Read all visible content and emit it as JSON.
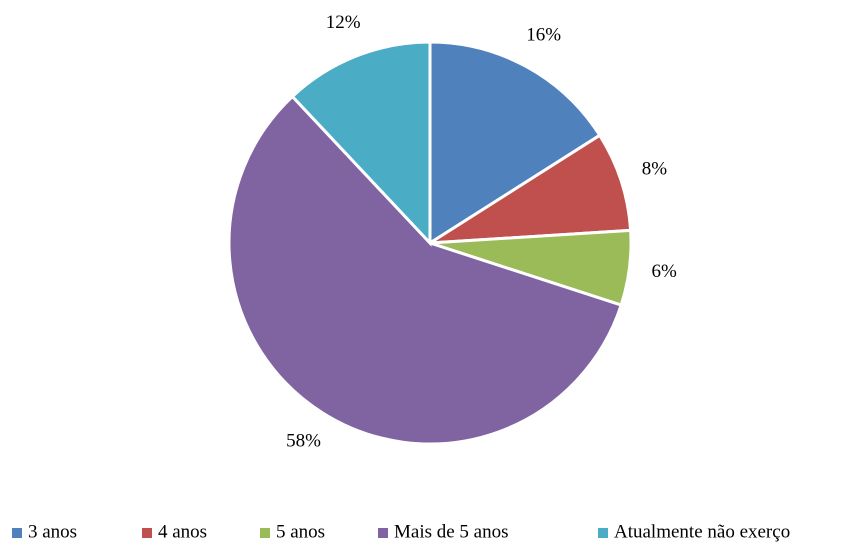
{
  "chart_data": {
    "type": "pie",
    "categories": [
      "3 anos",
      "4 anos",
      "5 anos",
      "Mais de 5 anos",
      "Atualmente não exerço"
    ],
    "values": [
      16,
      8,
      6,
      58,
      12
    ],
    "value_labels": [
      "16%",
      "8%",
      "6%",
      "58%",
      "12%"
    ],
    "colors": [
      "#4f81bd",
      "#c0504d",
      "#9bbb59",
      "#8064a2",
      "#4bacc6"
    ],
    "legend": "bottom"
  }
}
